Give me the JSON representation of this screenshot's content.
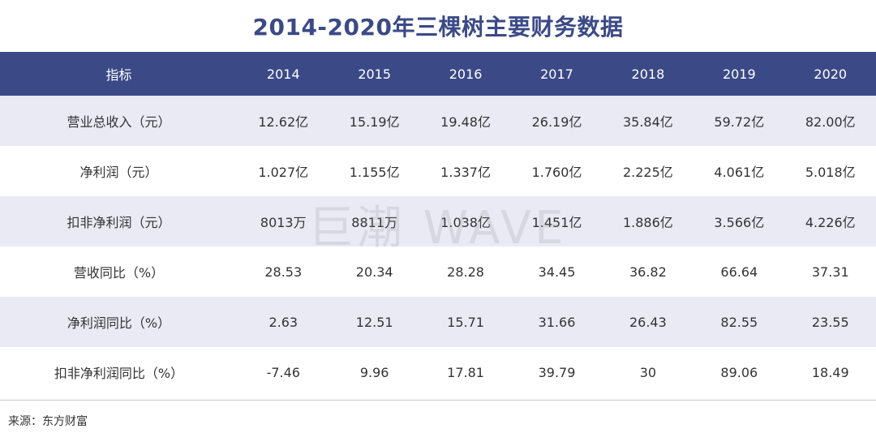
{
  "chart_data": {
    "type": "table",
    "title": "2014-2020年三棵树主要财务数据",
    "header_label": "指标",
    "columns": [
      "2014",
      "2015",
      "2016",
      "2017",
      "2018",
      "2019",
      "2020"
    ],
    "rows": [
      {
        "label": "营业总收入（元）",
        "values": [
          "12.62亿",
          "15.19亿",
          "19.48亿",
          "26.19亿",
          "35.84亿",
          "59.72亿",
          "82.00亿"
        ]
      },
      {
        "label": "净利润（元）",
        "values": [
          "1.027亿",
          "1.155亿",
          "1.337亿",
          "1.760亿",
          "2.225亿",
          "4.061亿",
          "5.018亿"
        ]
      },
      {
        "label": "扣非净利润（元）",
        "values": [
          "8013万",
          "8811万",
          "1.038亿",
          "1.451亿",
          "1.886亿",
          "3.566亿",
          "4.226亿"
        ]
      },
      {
        "label": "营收同比（%）",
        "values": [
          "28.53",
          "20.34",
          "28.28",
          "34.45",
          "36.82",
          "66.64",
          "37.31"
        ]
      },
      {
        "label": "净利润同比（%）",
        "values": [
          "2.63",
          "12.51",
          "15.71",
          "31.66",
          "26.43",
          "82.55",
          "23.55"
        ]
      },
      {
        "label": "扣非净利润同比（%）",
        "values": [
          "-7.46",
          "9.96",
          "17.81",
          "39.79",
          "30",
          "89.06",
          "18.49"
        ]
      }
    ],
    "colors": {
      "header_bg": "#3b4a86",
      "title": "#3b4a86",
      "stripe": "#e9eaf4"
    }
  },
  "source": "来源：东方财富",
  "watermark": "巨潮 WAVE"
}
